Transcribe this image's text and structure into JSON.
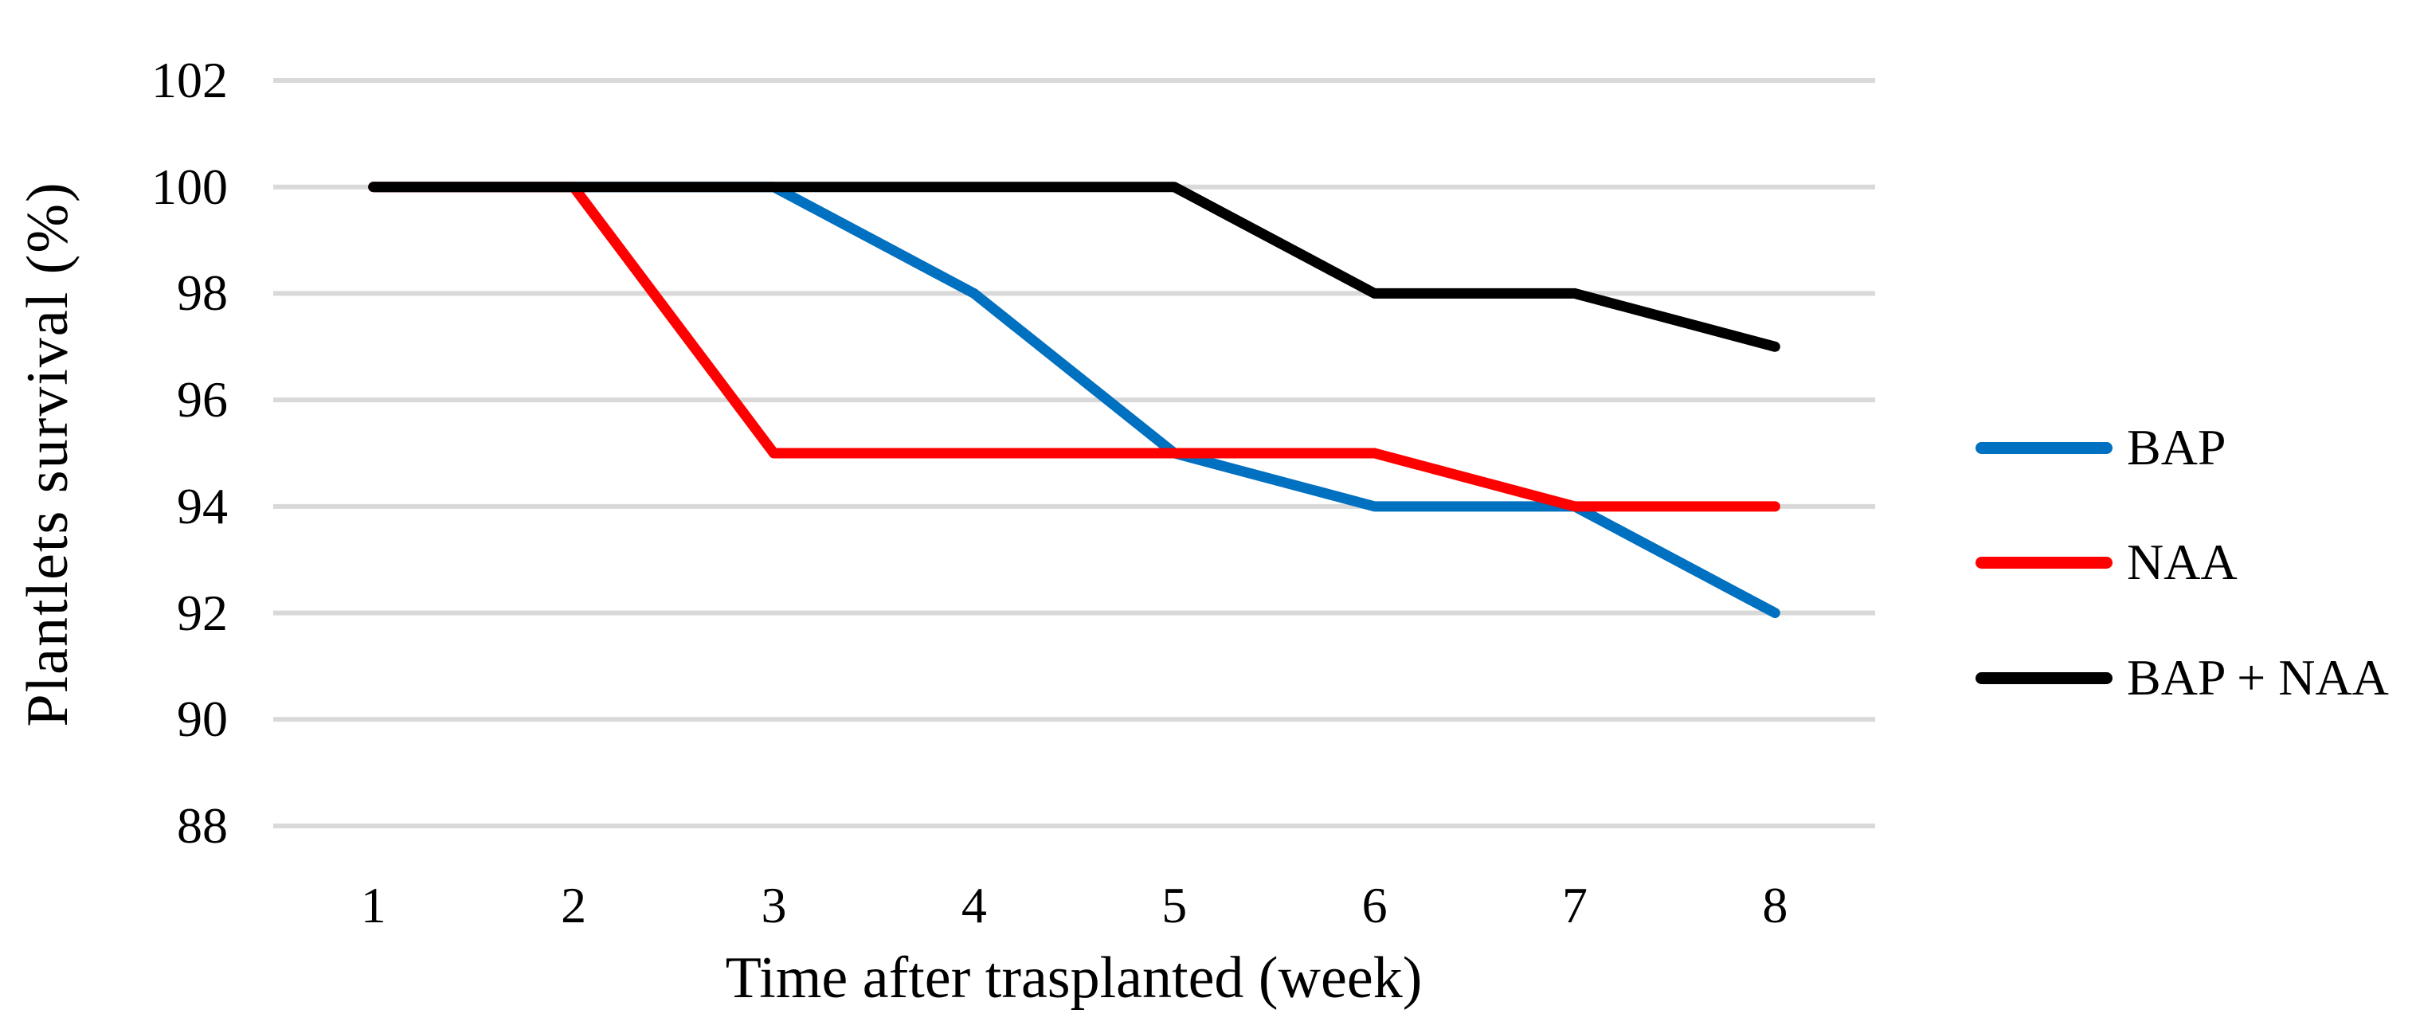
{
  "chart_data": {
    "type": "line",
    "xlabel": "Time after trasplanted (week)",
    "ylabel": "Plantlets survival (%)",
    "x": [
      1,
      2,
      3,
      4,
      5,
      6,
      7,
      8
    ],
    "xticks": [
      "1",
      "2",
      "3",
      "4",
      "5",
      "6",
      "7",
      "8"
    ],
    "yticks": [
      102,
      100,
      98,
      96,
      94,
      92,
      90,
      88
    ],
    "ylim": [
      88,
      102
    ],
    "grid": true,
    "gridline_color": "#D9D9D9",
    "background_color": "#FFFFFF",
    "text_color": "#000000",
    "legend_position": "right",
    "series": [
      {
        "name": "BAP",
        "color": "#0070C0",
        "values": [
          100,
          100,
          100,
          98,
          95,
          94,
          94,
          92
        ]
      },
      {
        "name": "NAA",
        "color": "#FF0000",
        "values": [
          100,
          100,
          95,
          95,
          95,
          95,
          94,
          94
        ]
      },
      {
        "name": "BAP + NAA",
        "color": "#000000",
        "values": [
          100,
          100,
          100,
          100,
          100,
          98,
          98,
          97
        ]
      }
    ]
  }
}
